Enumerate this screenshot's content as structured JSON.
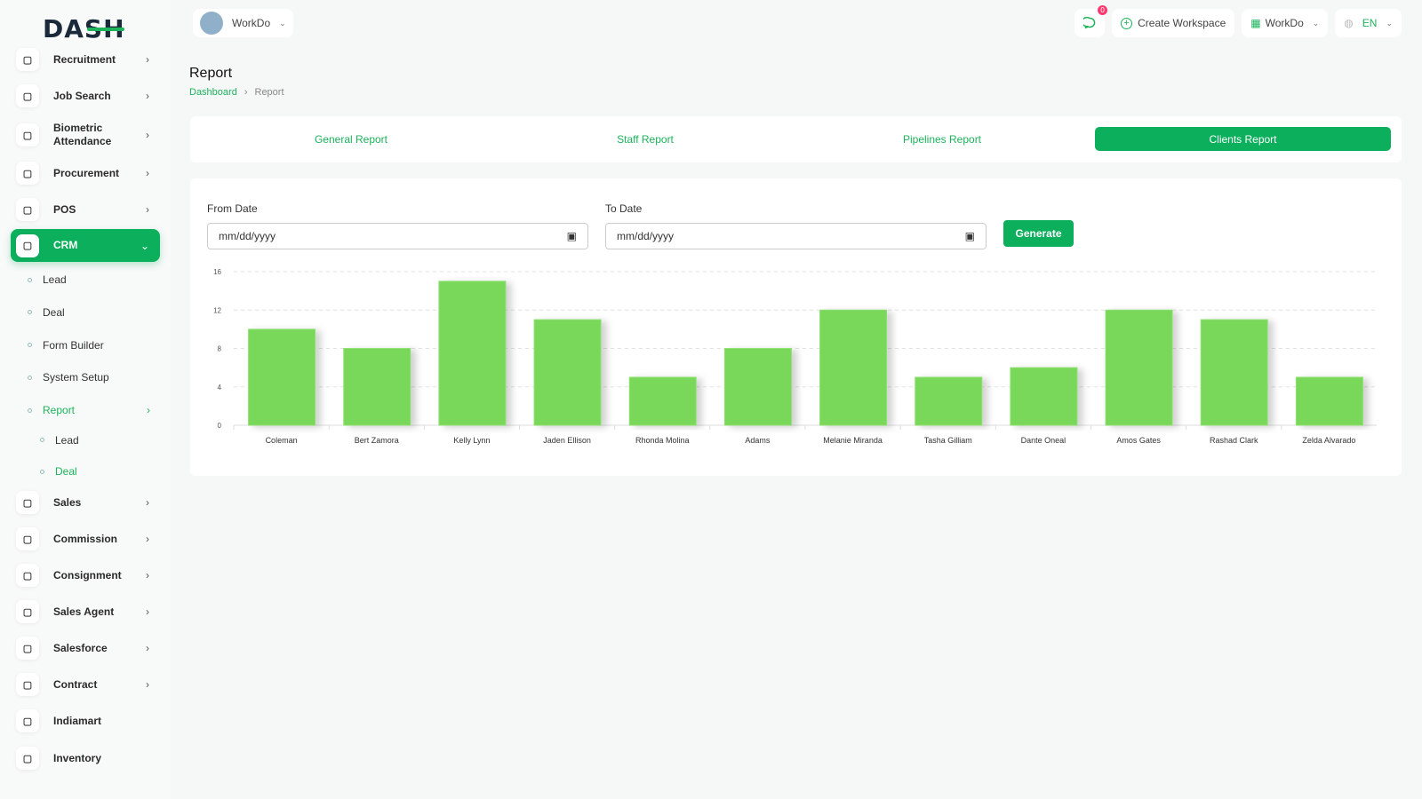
{
  "brand": {
    "logo_text": "DASH"
  },
  "header": {
    "workspace": "WorkDo",
    "notification_count": "0",
    "create_workspace": "Create Workspace",
    "workspace_menu": "WorkDo",
    "language": "EN"
  },
  "page": {
    "title": "Report",
    "breadcrumb": [
      "Dashboard",
      "Report"
    ]
  },
  "sidebar": {
    "items": [
      {
        "label": "Recruitment",
        "icon": "user-plus-icon",
        "chevron": true
      },
      {
        "label": "Job Search",
        "icon": "file-search-icon",
        "chevron": true
      },
      {
        "label": "Biometric Attendance",
        "icon": "fingerprint-icon",
        "chevron": true
      },
      {
        "label": "Procurement",
        "icon": "cart-icon",
        "chevron": true
      },
      {
        "label": "POS",
        "icon": "grid-icon",
        "chevron": true
      },
      {
        "label": "CRM",
        "icon": "crm-icon",
        "chevron": true,
        "active": true
      },
      {
        "label": "Sales",
        "icon": "file-icon",
        "chevron": true
      },
      {
        "label": "Commission",
        "icon": "calculator-icon",
        "chevron": true
      },
      {
        "label": "Consignment",
        "icon": "truck-icon",
        "chevron": true
      },
      {
        "label": "Sales Agent",
        "icon": "user-check-icon",
        "chevron": true
      },
      {
        "label": "Salesforce",
        "icon": "thumbs-up-icon",
        "chevron": true
      },
      {
        "label": "Contract",
        "icon": "contract-icon",
        "chevron": true
      },
      {
        "label": "Indiamart",
        "icon": "list-icon",
        "chevron": false
      },
      {
        "label": "Inventory",
        "icon": "file-icon",
        "chevron": false
      }
    ],
    "crm_sub": [
      "Lead",
      "Deal",
      "Form Builder",
      "System Setup",
      "Report"
    ],
    "report_sub": [
      "Lead",
      "Deal"
    ]
  },
  "tabs": [
    "General Report",
    "Staff Report",
    "Pipelines Report",
    "Clients Report"
  ],
  "active_tab": "Clients Report",
  "form": {
    "from_label": "From Date",
    "to_label": "To Date",
    "from_placeholder": "mm/dd/yyyy",
    "to_placeholder": "mm/dd/yyyy",
    "generate": "Generate"
  },
  "chart_data": {
    "type": "bar",
    "categories": [
      "Coleman",
      "Bert Zamora",
      "Kelly Lynn",
      "Jaden Ellison",
      "Rhonda Molina",
      "Adams",
      "Melanie Miranda",
      "Tasha Gilliam",
      "Dante Oneal",
      "Amos Gates",
      "Rashad Clark",
      "Zelda Alvarado"
    ],
    "values": [
      10,
      8,
      15,
      11,
      5,
      8,
      12,
      5,
      6,
      12,
      11,
      5
    ],
    "ylim": [
      0,
      16
    ],
    "yticks": [
      0,
      4,
      8,
      12,
      16
    ],
    "grid": true,
    "color": "#79d85a"
  }
}
